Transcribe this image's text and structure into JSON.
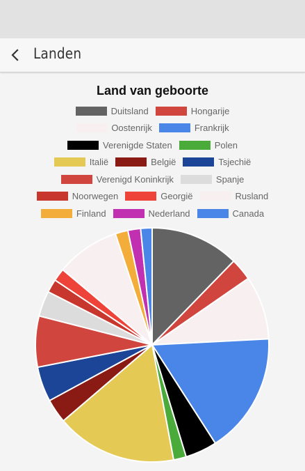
{
  "app_bar": {
    "title": "Landen",
    "back_icon": "arrow-left-icon"
  },
  "chart_data": {
    "type": "pie",
    "title": "Land van geboorte",
    "legend_position": "top",
    "categories": [
      "Duitsland",
      "Hongarije",
      "Oostenrijk",
      "Frankrijk",
      "Verenigde Staten",
      "Polen",
      "Italië",
      "België",
      "Tsjechië",
      "Verenigd Koninkrijk",
      "Spanje",
      "Noorwegen",
      "Georgië",
      "Rusland",
      "Finland",
      "Nederland",
      "Canada"
    ],
    "values": [
      14,
      3.5,
      10,
      19,
      5,
      2,
      19,
      3.8,
      5.5,
      8,
      4,
      2.1,
      2,
      10,
      2,
      2,
      1.8
    ],
    "colors": [
      "#636363",
      "#d1453f",
      "#f8f0f0",
      "#4a86e8",
      "#000000",
      "#4aaa3a",
      "#e5c955",
      "#8a1a14",
      "#1c4598",
      "#d1453f",
      "#dcdcdc",
      "#c8372d",
      "#ee4338",
      "#f8f0f0",
      "#f2ad3a",
      "#c030b0",
      "#4a86e8"
    ]
  }
}
